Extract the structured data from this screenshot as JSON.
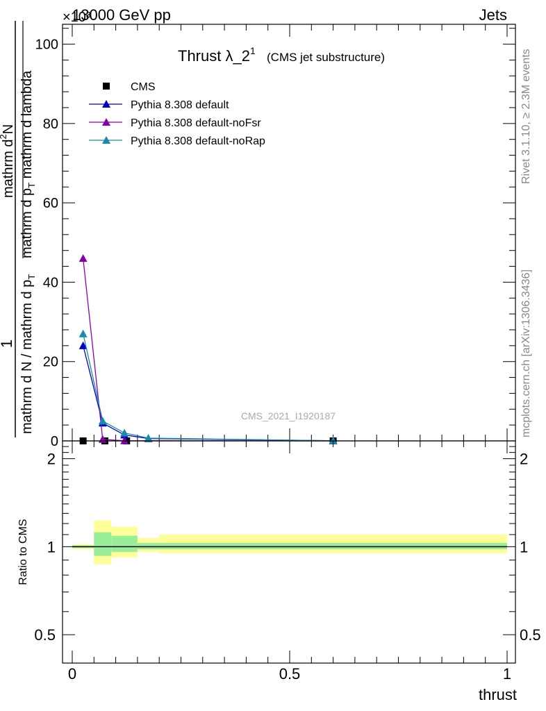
{
  "header": {
    "energy_label": "13000 GeV pp",
    "category_label": "Jets",
    "exponent_label": "×10³"
  },
  "side": {
    "rivet_label": "Rivet 3.1.10, ≥ 2.3M events",
    "mcplots_label": "mcplots.cern.ch [arXiv:1306.3436]"
  },
  "chart_data": [
    {
      "type": "line",
      "title": "Thrust λ_2¹",
      "title_main": "Thrust λ_2",
      "title_sup": "1",
      "subtitle": "(CMS jet substructure)",
      "watermark": "CMS_2021_I1920187",
      "ylabel_numerator": "1",
      "ylabel_denominator": "mathrm d N / mathrm d p",
      "ylabel_denominator_sub": "T",
      "ylabel_top": "mathrm d",
      "ylabel_top_sup": "2",
      "ylabel_top_end": "N",
      "ylabel_bottom": "mathrm d p",
      "ylabel_bottom_sub": "T",
      "ylabel_bottom_end": " mathrm d lambda",
      "xlim": [
        0,
        1
      ],
      "ylim": [
        0,
        105
      ],
      "y_exponent": 3,
      "yticks": [
        0,
        20,
        40,
        60,
        80,
        100
      ],
      "ytick_labels": [
        "0",
        "20",
        "40",
        "60",
        "80",
        "100"
      ],
      "legend_position": "top-left",
      "series": [
        {
          "name": "CMS",
          "color": "#000000",
          "marker": "square",
          "x": [
            0.025,
            0.075,
            0.125,
            0.6
          ],
          "y": [
            0,
            0,
            0,
            0
          ]
        },
        {
          "name": "Pythia 8.308 default",
          "color": "#0000cc",
          "marker": "triangle",
          "x": [
            0.025,
            0.07,
            0.12,
            0.175,
            0.6
          ],
          "y": [
            24,
            4.5,
            1.5,
            0.6,
            0.05
          ]
        },
        {
          "name": "Pythia 8.308 default-noFsr",
          "color": "#8800aa",
          "marker": "triangle",
          "x": [
            0.025,
            0.07,
            0.12,
            0.6
          ],
          "y": [
            46,
            0.4,
            0.05,
            0.01
          ]
        },
        {
          "name": "Pythia 8.308 default-noRap",
          "color": "#1a8aaa",
          "marker": "triangle",
          "x": [
            0.025,
            0.07,
            0.12,
            0.175,
            0.6
          ],
          "y": [
            27,
            5,
            2,
            0.7,
            0.05
          ]
        }
      ]
    },
    {
      "type": "area",
      "ylabel": "Ratio to CMS",
      "xlabel": "thrust",
      "xlim": [
        0,
        1
      ],
      "ylim": [
        0.4,
        2.3
      ],
      "xticks": [
        0,
        0.5,
        1
      ],
      "xtick_labels": [
        "0",
        "0.5",
        "1"
      ],
      "yticks": [
        0.5,
        1,
        2
      ],
      "ytick_labels": [
        "0.5",
        "1",
        "2"
      ],
      "reference_line": 1,
      "bands": [
        {
          "x0": 0.0,
          "x1": 0.05,
          "yellow": [
            0.98,
            1.02
          ],
          "green": [
            0.99,
            1.01
          ]
        },
        {
          "x0": 0.05,
          "x1": 0.09,
          "yellow": [
            0.87,
            1.23
          ],
          "green": [
            0.93,
            1.12
          ]
        },
        {
          "x0": 0.09,
          "x1": 0.15,
          "yellow": [
            0.92,
            1.17
          ],
          "green": [
            0.96,
            1.09
          ]
        },
        {
          "x0": 0.15,
          "x1": 0.2,
          "yellow": [
            0.96,
            1.07
          ],
          "green": [
            0.98,
            1.03
          ]
        },
        {
          "x0": 0.2,
          "x1": 1.0,
          "yellow": [
            0.95,
            1.1
          ],
          "green": [
            0.98,
            1.03
          ]
        }
      ]
    }
  ]
}
